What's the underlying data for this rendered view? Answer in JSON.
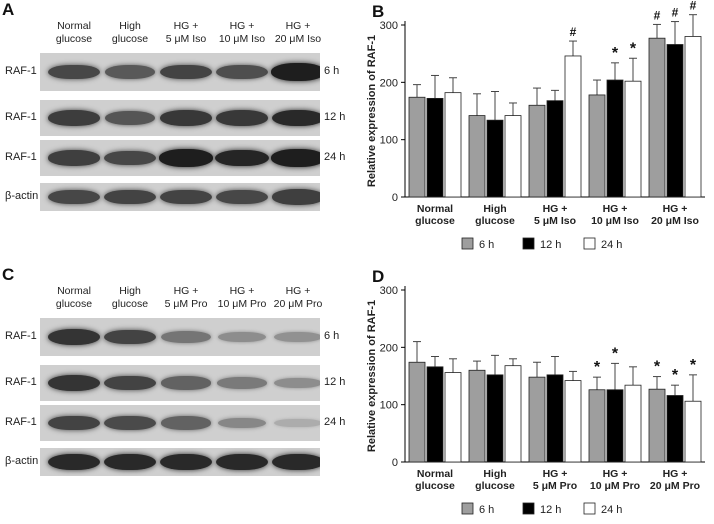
{
  "panels": {
    "A": {
      "label": "A",
      "lanes": [
        "Normal glucose",
        "High glucose",
        "HG + 5 μM Iso",
        "HG + 10 μM Iso",
        "HG + 20 μM Iso"
      ],
      "rows": [
        {
          "label": "RAF-1",
          "time": "6 h",
          "intensity": [
            0.7,
            0.6,
            0.72,
            0.66,
            0.92
          ]
        },
        {
          "label": "RAF-1",
          "time": "12 h",
          "intensity": [
            0.75,
            0.62,
            0.78,
            0.78,
            0.86
          ]
        },
        {
          "label": "RAF-1",
          "time": "24 h",
          "intensity": [
            0.74,
            0.7,
            0.92,
            0.88,
            0.92
          ]
        },
        {
          "label": "β-actin",
          "time": "",
          "intensity": [
            0.7,
            0.72,
            0.72,
            0.7,
            0.74
          ]
        }
      ]
    },
    "C": {
      "label": "C",
      "lanes": [
        "Normal glucose",
        "High glucose",
        "HG + 5 μM Pro",
        "HG + 10 μM Pro",
        "HG + 20 μM Pro"
      ],
      "rows": [
        {
          "label": "RAF-1",
          "time": "6 h",
          "intensity": [
            0.8,
            0.72,
            0.45,
            0.32,
            0.3
          ]
        },
        {
          "label": "RAF-1",
          "time": "12 h",
          "intensity": [
            0.8,
            0.72,
            0.55,
            0.42,
            0.32
          ]
        },
        {
          "label": "RAF-1",
          "time": "24 h",
          "intensity": [
            0.72,
            0.68,
            0.55,
            0.35,
            0.15
          ]
        },
        {
          "label": "β-actin",
          "time": "",
          "intensity": [
            0.86,
            0.86,
            0.86,
            0.86,
            0.86
          ]
        }
      ]
    }
  },
  "chart_data": [
    {
      "panel": "B",
      "type": "bar",
      "ylabel": "Relative expression of RAF-1",
      "ylim": [
        0,
        300
      ],
      "yticks": [
        0,
        100,
        200,
        300
      ],
      "categories": [
        "Normal glucose",
        "High glucose",
        "HG + 5 μM Iso",
        "HG + 10 μM Iso",
        "HG + 20 μM Iso"
      ],
      "series": [
        {
          "name": "6 h",
          "color": "#9e9e9e",
          "values": [
            174,
            142,
            160,
            178,
            277
          ],
          "errors": [
            22,
            38,
            30,
            26,
            24
          ],
          "marks": [
            "",
            "",
            "",
            "",
            "#"
          ]
        },
        {
          "name": "12 h",
          "color": "#000000",
          "values": [
            172,
            134,
            168,
            204,
            266
          ],
          "errors": [
            40,
            50,
            18,
            30,
            40
          ],
          "marks": [
            "",
            "",
            "",
            "*",
            "#"
          ]
        },
        {
          "name": "24 h",
          "color": "#ffffff",
          "values": [
            182,
            142,
            246,
            202,
            280
          ],
          "errors": [
            26,
            22,
            26,
            40,
            38
          ],
          "marks": [
            "",
            "",
            "#",
            "*",
            "#"
          ]
        }
      ],
      "legend": "bottom"
    },
    {
      "panel": "D",
      "type": "bar",
      "ylabel": "Relative expression of RAF-1",
      "ylim": [
        0,
        300
      ],
      "yticks": [
        0,
        100,
        200,
        300
      ],
      "categories": [
        "Normal glucose",
        "High glucose",
        "HG + 5 μM Pro",
        "HG + 10 μM Pro",
        "HG + 20 μM Pro"
      ],
      "series": [
        {
          "name": "6 h",
          "color": "#9e9e9e",
          "values": [
            174,
            160,
            148,
            126,
            127
          ],
          "errors": [
            36,
            16,
            26,
            22,
            22
          ],
          "marks": [
            "",
            "",
            "",
            "*",
            "*"
          ]
        },
        {
          "name": "12 h",
          "color": "#000000",
          "values": [
            166,
            152,
            152,
            126,
            116
          ],
          "errors": [
            18,
            34,
            32,
            46,
            18
          ],
          "marks": [
            "",
            "",
            "",
            "*",
            "*"
          ]
        },
        {
          "name": "24 h",
          "color": "#ffffff",
          "values": [
            156,
            168,
            142,
            134,
            106
          ],
          "errors": [
            24,
            12,
            16,
            32,
            46
          ],
          "marks": [
            "",
            "",
            "",
            "",
            "*"
          ]
        }
      ],
      "legend": "bottom"
    }
  ]
}
